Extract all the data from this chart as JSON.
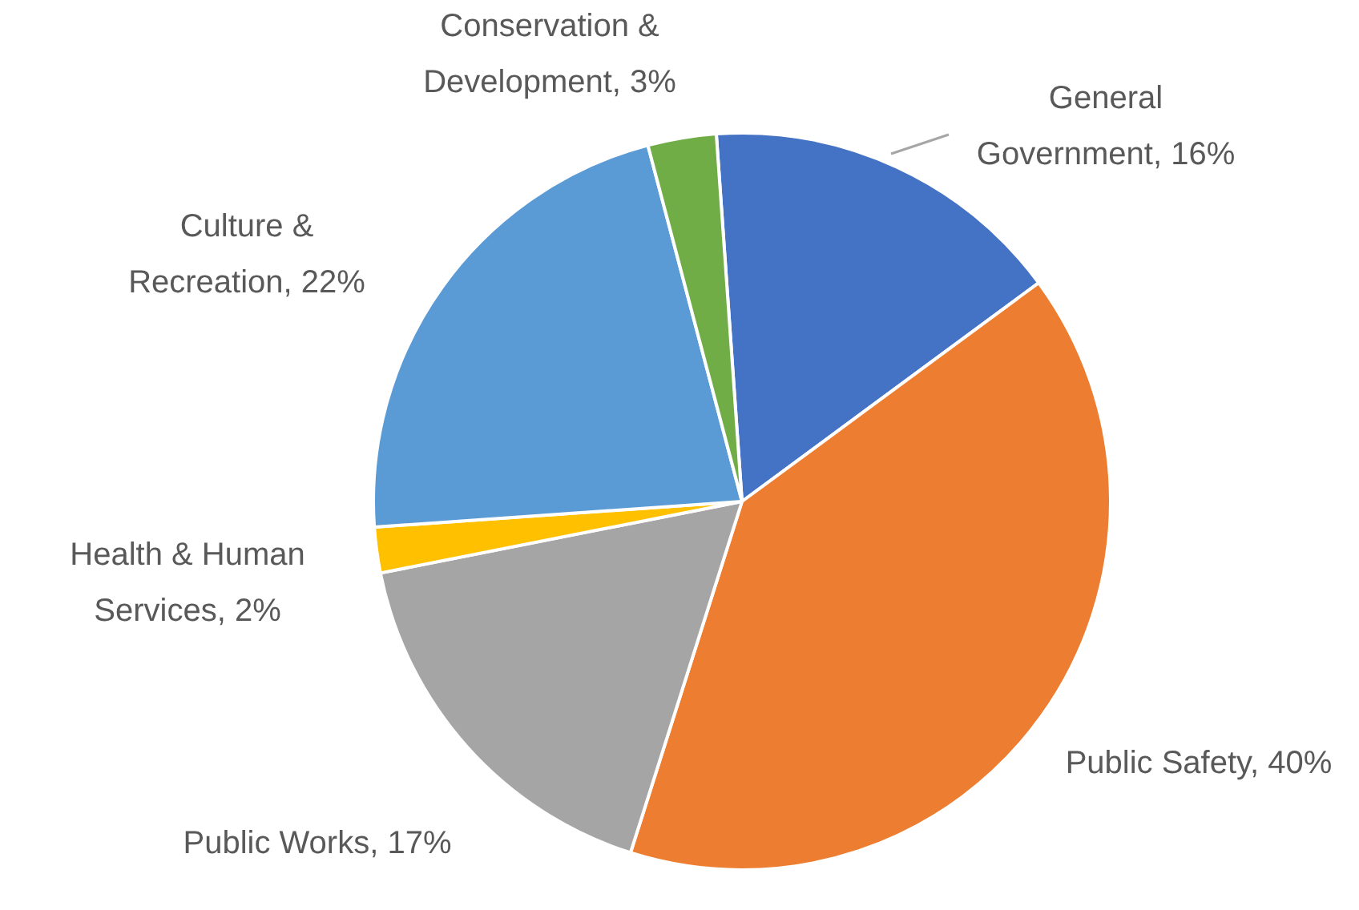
{
  "chart_data": {
    "type": "pie",
    "categories": [
      "General Government",
      "Public Safety",
      "Public Works",
      "Health & Human Services",
      "Culture & Recreation",
      "Conservation & Development"
    ],
    "values": [
      16,
      40,
      17,
      2,
      22,
      3
    ],
    "value_labels": [
      "16%",
      "40%",
      "17%",
      "2%",
      "22%",
      "3%"
    ],
    "colors": [
      "#4472c4",
      "#ed7d31",
      "#a5a5a5",
      "#ffc000",
      "#5b9bd5",
      "#70ad47"
    ],
    "legend": false
  }
}
